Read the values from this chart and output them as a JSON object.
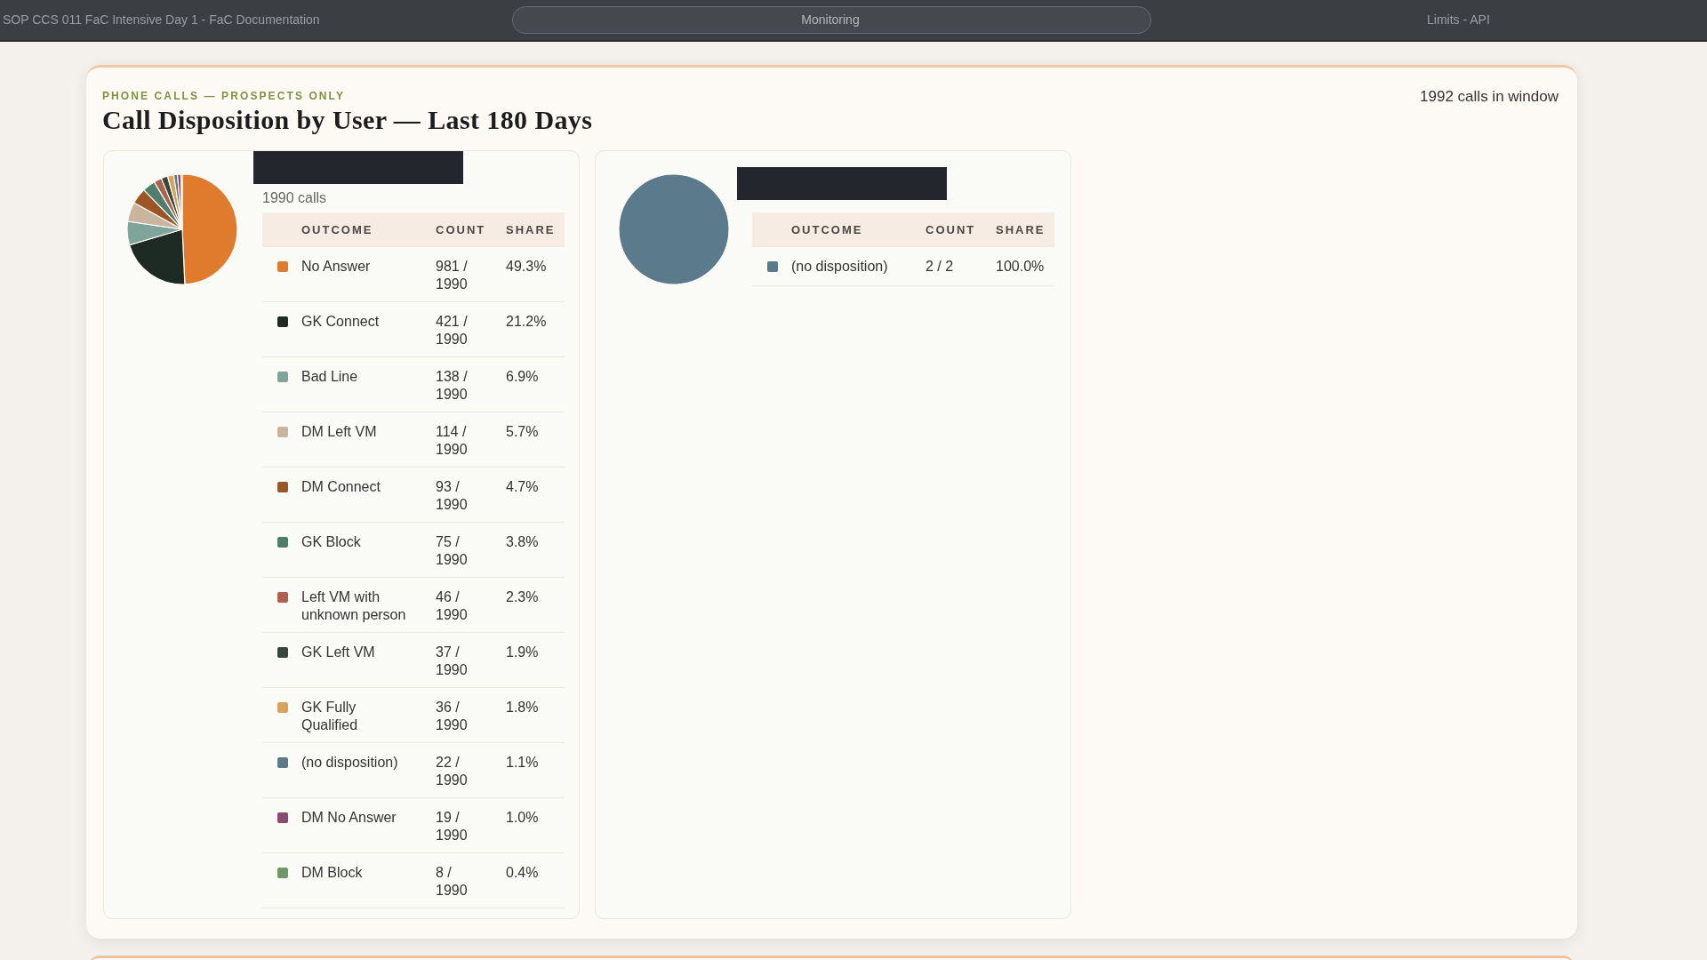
{
  "chart_data": [
    {
      "type": "other",
      "annotations": [
        "SOP CCS 011 FaC Intensive Day 1 - FaC Documentation",
        "Monitoring",
        "Limits - API"
      ]
    },
    {
      "type": "other",
      "subtitle": "PHONE CALLS — PROSPECTS ONLY",
      "title": "Call Disposition by User — Last 180 Days",
      "annotations": [
        "1992 calls in window"
      ]
    },
    {
      "type": "pie",
      "subtitle": "1990 calls",
      "legend": "right",
      "legend_title": "OUTCOME",
      "categories": [
        "No Answer",
        "GK Connect",
        "Bad Line",
        "DM Left VM",
        "DM Connect",
        "GK Block",
        "Left VM with unknown person",
        "GK Left VM",
        "GK Fully Qualified",
        "(no disposition)",
        "DM No Answer",
        "DM Block"
      ],
      "values": [
        49.3,
        21.2,
        6.9,
        5.7,
        4.7,
        3.8,
        2.3,
        1.9,
        1.8,
        1.1,
        1.0,
        0.4
      ],
      "colors": [
        "#e07b2e",
        "#1e2a24",
        "#7fa59b",
        "#c9b49e",
        "#9c5525",
        "#4e7f6c",
        "#b06050",
        "#34483f",
        "#dba25a",
        "#5b7a8c",
        "#8a4a6c",
        "#6f9868"
      ],
      "value_labels": [
        "49.3%",
        "21.2%",
        "6.9%",
        "5.7%",
        "4.7%",
        "3.8%",
        "2.3%",
        "1.9%",
        "1.8%",
        "1.1%",
        "1.0%",
        "0.4%"
      ],
      "annotations": [
        "COUNT",
        "SHARE",
        "981 / 1990",
        "421 / 1990",
        "138 / 1990",
        "114 / 1990",
        "93 / 1990",
        "75 / 1990",
        "46 / 1990",
        "37 / 1990",
        "36 / 1990",
        "22 / 1990",
        "19 / 1990",
        "8 / 1990"
      ]
    },
    {
      "type": "pie",
      "legend": "right",
      "legend_title": "OUTCOME",
      "categories": [
        "(no disposition)"
      ],
      "values": [
        100.0
      ],
      "colors": [
        "#5b7a8c"
      ],
      "value_labels": [
        "100.0%"
      ],
      "annotations": [
        "COUNT",
        "SHARE",
        "2 / 2"
      ]
    }
  ]
}
